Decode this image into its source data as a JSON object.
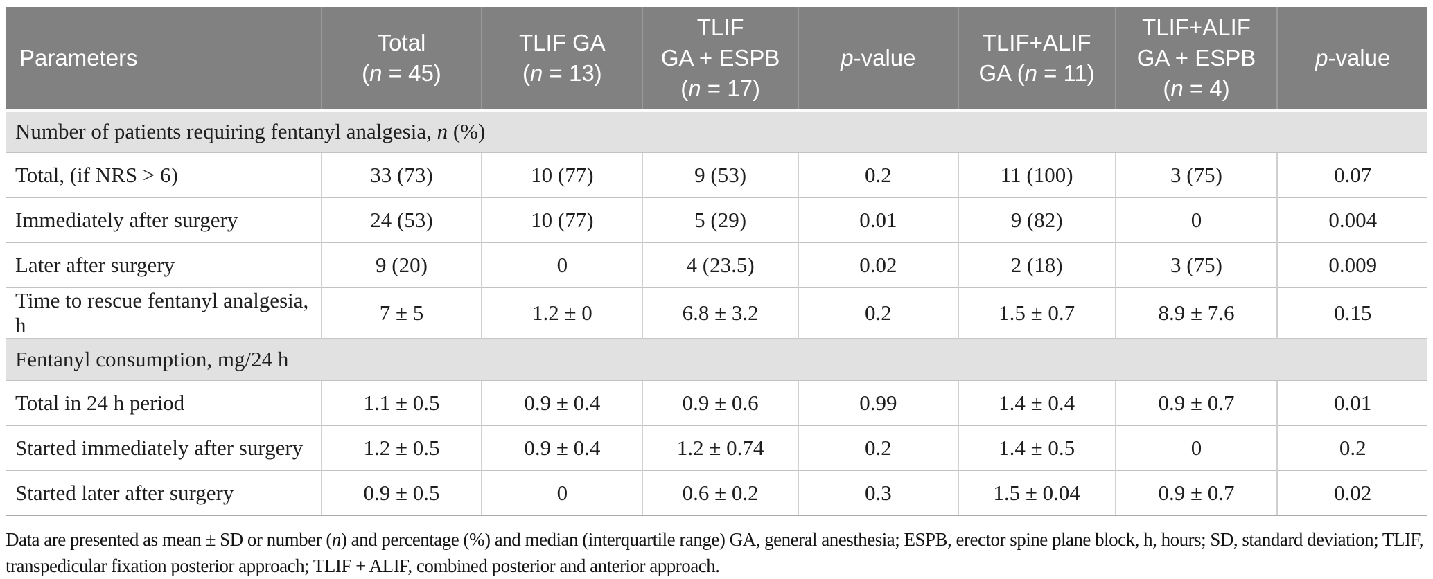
{
  "theme": {
    "header_bg": "#818181",
    "header_text": "#ffffff",
    "header_divider": "#9a9a9a",
    "section_bg": "#e1e1e1",
    "row_bg": "#ffffff",
    "row_border": "#c2c2c2",
    "column_divider": "#d0d0d0",
    "table_bottom_border": "#ababab",
    "body_text": "#1e1e1e"
  },
  "table": {
    "col_widths_pct": [
      22.2,
      11.3,
      11.3,
      10.95,
      11.25,
      11.05,
      11.4,
      10.55
    ],
    "columns": [
      {
        "key": "parameters",
        "lines": [
          [
            {
              "t": "Parameters"
            }
          ]
        ]
      },
      {
        "key": "total",
        "lines": [
          [
            {
              "t": "Total"
            }
          ],
          [
            {
              "t": "("
            },
            {
              "t": "n",
              "i": true
            },
            {
              "t": " = 45)"
            }
          ]
        ]
      },
      {
        "key": "tlif-ga",
        "lines": [
          [
            {
              "t": "TLIF GA"
            }
          ],
          [
            {
              "t": "("
            },
            {
              "t": "n",
              "i": true
            },
            {
              "t": " = 13)"
            }
          ]
        ]
      },
      {
        "key": "tlif-ga-espb",
        "lines": [
          [
            {
              "t": "TLIF"
            }
          ],
          [
            {
              "t": "GA + ESPB"
            }
          ],
          [
            {
              "t": "("
            },
            {
              "t": "n",
              "i": true
            },
            {
              "t": " = 17)"
            }
          ]
        ]
      },
      {
        "key": "p-value-1",
        "lines": [
          [
            {
              "t": "p",
              "i": true
            },
            {
              "t": "-value"
            }
          ]
        ]
      },
      {
        "key": "tlif-alif-ga",
        "lines": [
          [
            {
              "t": "TLIF+ALIF"
            }
          ],
          [
            {
              "t": "GA ("
            },
            {
              "t": "n",
              "i": true
            },
            {
              "t": " = 11)"
            }
          ]
        ]
      },
      {
        "key": "tlif-alif-ga-espb",
        "lines": [
          [
            {
              "t": "TLIF+ALIF"
            }
          ],
          [
            {
              "t": "GA + ESPB"
            }
          ],
          [
            {
              "t": "("
            },
            {
              "t": "n",
              "i": true
            },
            {
              "t": " = 4)"
            }
          ]
        ]
      },
      {
        "key": "p-value-2",
        "lines": [
          [
            {
              "t": "p",
              "i": true
            },
            {
              "t": "-value"
            }
          ]
        ]
      }
    ],
    "sections": [
      {
        "header_segments": [
          {
            "t": "Number of patients requiring fentanyl analgesia, "
          },
          {
            "t": "n",
            "i": true
          },
          {
            "t": " (%)"
          }
        ],
        "rows": [
          {
            "label": "Total, (if NRS > 6)",
            "values": [
              "33 (73)",
              "10 (77)",
              "9 (53)",
              "0.2",
              "11 (100)",
              "3 (75)",
              "0.07"
            ]
          },
          {
            "label": "Immediately after surgery",
            "values": [
              "24 (53)",
              "10 (77)",
              "5 (29)",
              "0.01",
              "9 (82)",
              "0",
              "0.004"
            ]
          },
          {
            "label": "Later after surgery",
            "values": [
              "9 (20)",
              "0",
              "4 (23.5)",
              "0.02",
              "2 (18)",
              "3 (75)",
              "0.009"
            ]
          },
          {
            "label": "Time to rescue fentanyl analgesia, h",
            "values": [
              "7 ± 5",
              "1.2 ± 0",
              "6.8 ± 3.2",
              "0.2",
              "1.5 ± 0.7",
              "8.9 ± 7.6",
              "0.15"
            ]
          }
        ]
      },
      {
        "header_segments": [
          {
            "t": "Fentanyl consumption, mg/24 h"
          }
        ],
        "rows": [
          {
            "label": "Total in 24 h period",
            "values": [
              "1.1 ± 0.5",
              "0.9 ± 0.4",
              "0.9 ± 0.6",
              "0.99",
              "1.4 ± 0.4",
              "0.9 ± 0.7",
              "0.01"
            ]
          },
          {
            "label": "Started immediately after surgery",
            "values": [
              "1.2 ± 0.5",
              "0.9 ± 0.4",
              "1.2 ± 0.74",
              "0.2",
              "1.4 ± 0.5",
              "0",
              "0.2"
            ]
          },
          {
            "label": "Started later after surgery",
            "values": [
              "0.9 ± 0.5",
              "0",
              "0.6 ± 0.2",
              "0.3",
              "1.5 ± 0.04",
              "0.9 ± 0.7",
              "0.02"
            ]
          }
        ]
      }
    ]
  },
  "footnote": {
    "segments": [
      {
        "t": "Data are presented as mean ± SD or number ("
      },
      {
        "t": "n",
        "i": true
      },
      {
        "t": ") and percentage (%) and median (interquartile range) GA, general anesthesia; ESPB, erector spine plane block, h, hours; SD, standard deviation; TLIF, transpedicular fixation posterior approach; TLIF + ALIF, combined posterior and anterior approach."
      }
    ]
  }
}
